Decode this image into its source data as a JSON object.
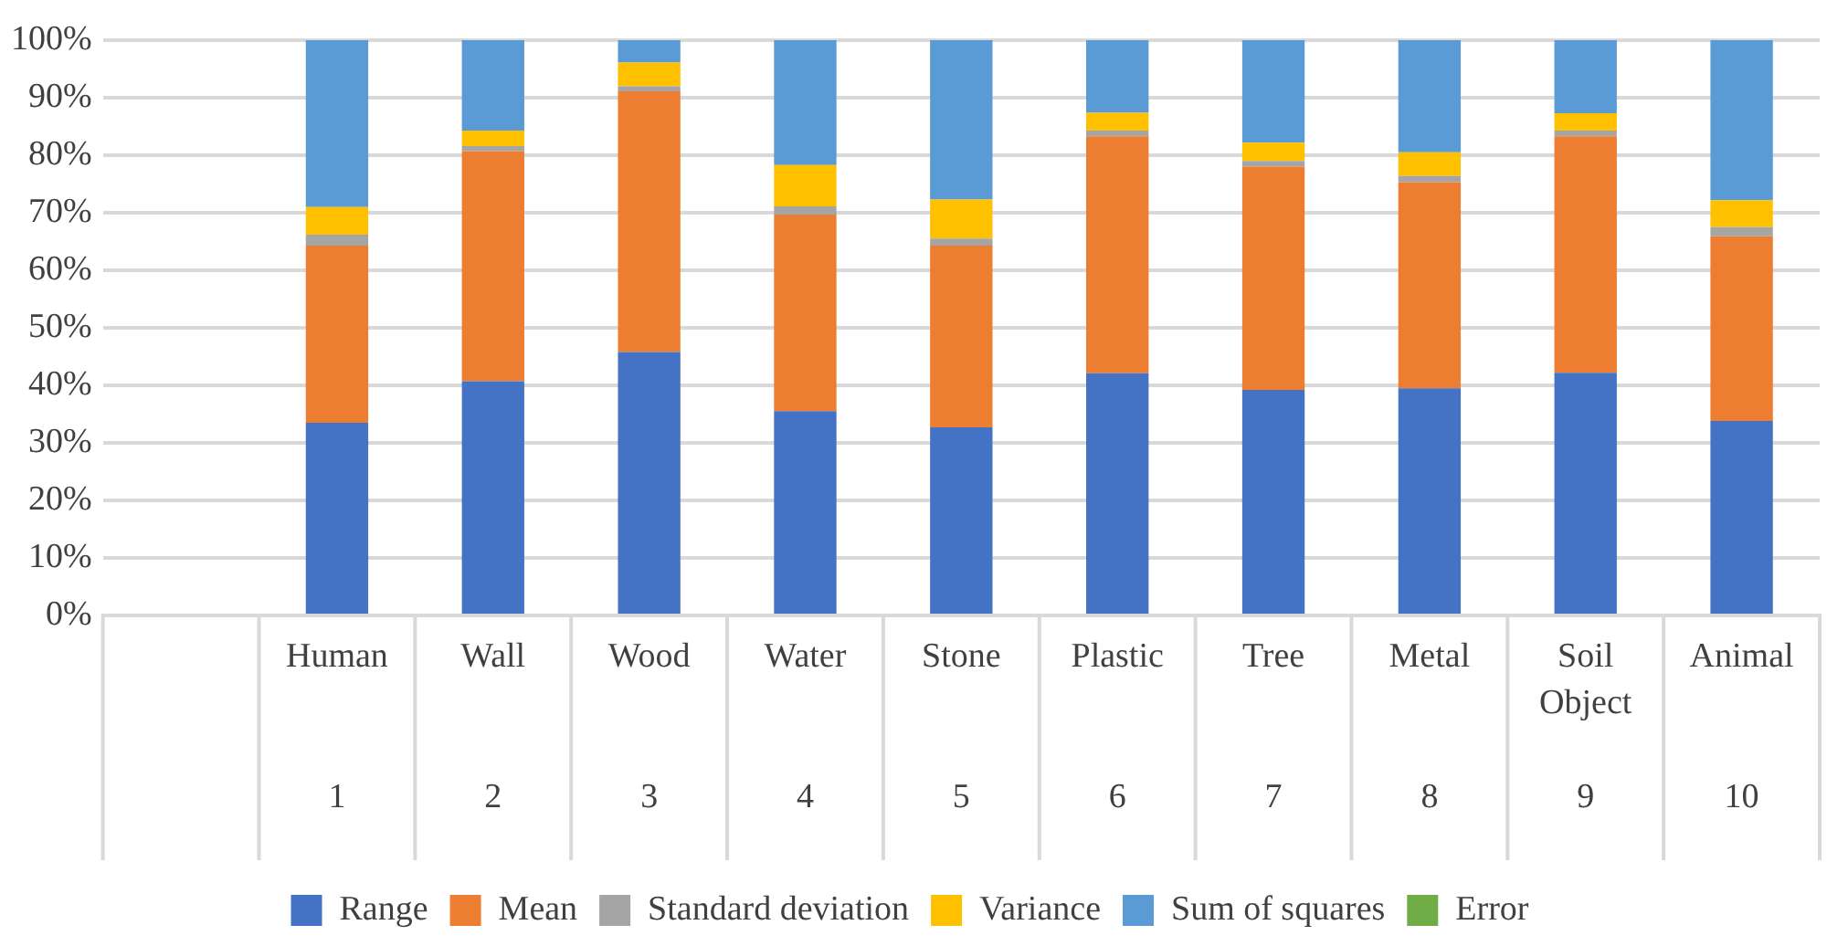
{
  "chart_data": {
    "type": "bar",
    "stacked": true,
    "categories": [
      null,
      "Human\n\n\n1",
      "Wall\n\n\n2",
      "Wood\n\n\n3",
      "Water\n\n\n4",
      "Stone\n\n\n5",
      "Plastic\n\n\n6",
      "Tree\n\n\n7",
      "Metal\n\n\n8",
      "Soil\nObject\n\n9",
      "Animal\n\n\n10"
    ],
    "series": [
      {
        "name": "Range",
        "color": "#4472c4",
        "values": [
          null,
          33.5,
          40.7,
          45.8,
          35.5,
          32.7,
          42.1,
          39.2,
          39.5,
          42.2,
          33.8
        ]
      },
      {
        "name": "Mean",
        "color": "#ed7d31",
        "values": [
          null,
          30.8,
          40.0,
          45.3,
          34.2,
          31.6,
          41.2,
          38.8,
          35.8,
          41.1,
          32.1
        ]
      },
      {
        "name": "Standard deviation",
        "color": "#a5a5a5",
        "values": [
          null,
          1.9,
          0.9,
          0.9,
          1.4,
          1.2,
          1.0,
          1.0,
          1.1,
          1.0,
          1.6
        ]
      },
      {
        "name": "Variance",
        "color": "#ffc000",
        "values": [
          null,
          4.8,
          2.7,
          4.1,
          7.2,
          6.8,
          3.1,
          3.2,
          4.1,
          3.0,
          4.7
        ]
      },
      {
        "name": "Sum of squares",
        "color": "#5b9bd5",
        "values": [
          null,
          29.0,
          15.7,
          3.9,
          21.7,
          27.7,
          12.6,
          17.8,
          19.5,
          12.7,
          27.8
        ]
      },
      {
        "name": "Error",
        "color": "#70ad47",
        "values": [
          null,
          0,
          0,
          0,
          0,
          0,
          0,
          0,
          0,
          0,
          0
        ]
      }
    ],
    "ylim": [
      0,
      100
    ],
    "yticks": [
      {
        "value": 0,
        "label": "0%"
      },
      {
        "value": 10,
        "label": "10%"
      },
      {
        "value": 20,
        "label": "20%"
      },
      {
        "value": 30,
        "label": "30%"
      },
      {
        "value": 40,
        "label": "40%"
      },
      {
        "value": 50,
        "label": "50%"
      },
      {
        "value": 60,
        "label": "60%"
      },
      {
        "value": 70,
        "label": "70%"
      },
      {
        "value": 80,
        "label": "80%"
      },
      {
        "value": 90,
        "label": "90%"
      },
      {
        "value": 100,
        "label": "100%"
      }
    ],
    "grid": "y",
    "legend": "bottom"
  }
}
